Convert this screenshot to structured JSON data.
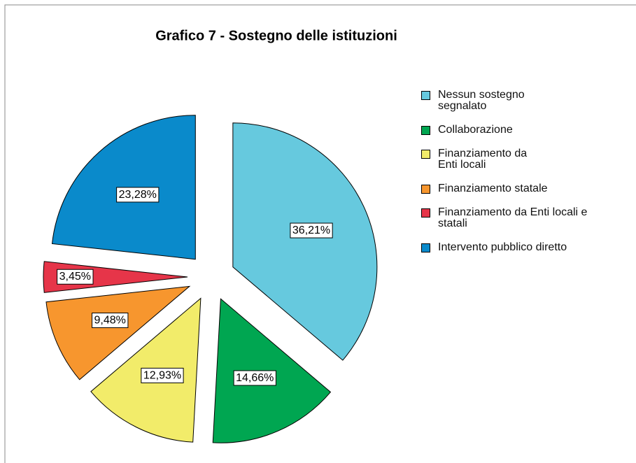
{
  "chart_data": {
    "type": "pie",
    "title": "Grafico 7 - Sostegno delle istituzioni",
    "categories": [
      "Nessun sostegno segnalato",
      "Collaborazione",
      "Finanziamento da Enti locali",
      "Finanziamento statale",
      "Finanziamento da Enti locali e statali",
      "Intervento pubblico diretto"
    ],
    "values": [
      36.21,
      14.66,
      12.93,
      9.48,
      3.45,
      23.28
    ],
    "value_labels": [
      "36,21%",
      "14,66%",
      "12,93%",
      "9,48%",
      "3,45%",
      "23,28%"
    ],
    "colors": [
      "#66c9de",
      "#00a651",
      "#f2ec6a",
      "#f7962e",
      "#e63549",
      "#0a8acb"
    ],
    "legend": "right"
  }
}
